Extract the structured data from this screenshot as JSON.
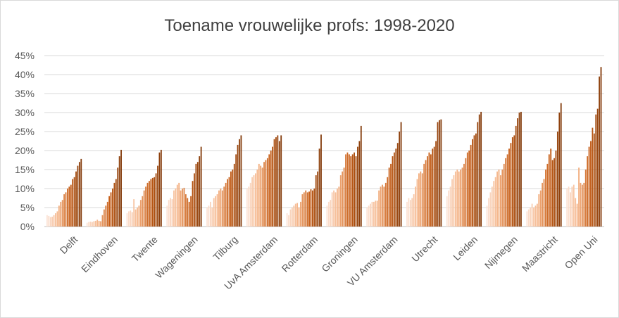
{
  "chart_data": {
    "type": "bar",
    "title": "Toename vrouwelijke profs: 1998-2020",
    "xlabel": "",
    "ylabel": "",
    "ylim": [
      0,
      45
    ],
    "y_ticks": [
      "0%",
      "5%",
      "10%",
      "15%",
      "20%",
      "25%",
      "30%",
      "35%",
      "40%",
      "45%"
    ],
    "y_tick_values": [
      0,
      5,
      10,
      15,
      20,
      25,
      30,
      35,
      40,
      45
    ],
    "grid": true,
    "legend": "none",
    "color_light": "#fbe3d6",
    "color_dark": "#843c0c",
    "categories": [
      "Delft",
      "Eindhoven",
      "Twente",
      "Wageningen",
      "Tilburg",
      "UvA Amsterdam",
      "Rotterdam",
      "Groningen",
      "VU Amsterdam",
      "Utrecht",
      "Leiden",
      "Nijmegen",
      "Maastricht",
      "Open Uni"
    ],
    "series_by_category": [
      {
        "name": "Delft",
        "values": [
          3.0,
          2.8,
          2.5,
          2.6,
          3.0,
          3.5,
          4.0,
          5.5,
          6.5,
          7.0,
          8.5,
          9.0,
          10.0,
          10.5,
          11.0,
          12.5,
          13.0,
          14.5,
          16.0,
          17.0,
          17.8
        ]
      },
      {
        "name": "Eindhoven",
        "values": [
          1.0,
          1.2,
          1.3,
          1.2,
          1.4,
          1.5,
          1.8,
          1.5,
          1.4,
          3.0,
          4.5,
          5.5,
          6.5,
          8.0,
          9.0,
          10.0,
          11.5,
          12.5,
          15.5,
          18.5,
          20.2
        ]
      },
      {
        "name": "Twente",
        "values": [
          3.5,
          4.0,
          4.2,
          3.8,
          7.2,
          4.5,
          5.0,
          5.5,
          7.0,
          8.0,
          9.5,
          10.5,
          11.5,
          12.0,
          12.5,
          12.8,
          13.0,
          14.0,
          16.0,
          19.5,
          20.2
        ]
      },
      {
        "name": "Wageningen",
        "values": [
          5.5,
          7.0,
          7.5,
          7.2,
          9.5,
          10.0,
          11.0,
          11.5,
          9.5,
          10.0,
          10.2,
          8.5,
          7.5,
          6.5,
          8.0,
          12.0,
          14.0,
          16.5,
          17.0,
          18.5,
          21.0
        ]
      },
      {
        "name": "Tilburg",
        "values": [
          5.0,
          5.5,
          6.5,
          5.0,
          7.5,
          8.0,
          8.5,
          9.5,
          10.0,
          9.5,
          10.5,
          11.5,
          12.5,
          13.0,
          14.5,
          15.0,
          16.5,
          19.0,
          21.5,
          23.0,
          24.0
        ]
      },
      {
        "name": "UvA Amsterdam",
        "values": [
          10.0,
          10.5,
          11.5,
          13.0,
          13.5,
          14.0,
          15.0,
          16.5,
          16.0,
          15.5,
          17.0,
          17.5,
          18.0,
          19.0,
          20.0,
          21.0,
          23.0,
          23.5,
          24.0,
          22.5,
          24.0
        ]
      },
      {
        "name": "Rotterdam",
        "values": [
          3.5,
          3.0,
          4.5,
          5.0,
          5.5,
          6.0,
          6.2,
          5.0,
          6.5,
          8.5,
          9.0,
          9.5,
          9.0,
          9.2,
          9.8,
          9.5,
          10.0,
          13.5,
          14.5,
          20.5,
          24.2
        ]
      },
      {
        "name": "Groningen",
        "values": [
          5.5,
          6.5,
          7.0,
          9.0,
          9.5,
          9.0,
          10.0,
          10.5,
          13.5,
          14.5,
          15.5,
          19.0,
          19.5,
          19.0,
          18.5,
          19.0,
          19.5,
          18.5,
          21.0,
          22.5,
          26.5
        ]
      },
      {
        "name": "VU Amsterdam",
        "values": [
          5.0,
          5.5,
          6.0,
          6.5,
          6.5,
          6.8,
          6.8,
          9.5,
          10.5,
          11.0,
          10.5,
          11.5,
          13.0,
          15.5,
          16.5,
          18.5,
          19.5,
          20.5,
          22.0,
          25.0,
          27.5
        ]
      },
      {
        "name": "Utrecht",
        "values": [
          6.5,
          7.5,
          7.0,
          7.5,
          8.5,
          10.5,
          12.5,
          14.0,
          14.5,
          14.0,
          16.5,
          17.5,
          18.5,
          19.5,
          19.0,
          20.5,
          21.0,
          22.5,
          27.5,
          28.0,
          28.2
        ]
      },
      {
        "name": "Leiden",
        "values": [
          8.0,
          9.5,
          10.5,
          12.5,
          13.5,
          14.5,
          15.0,
          14.5,
          15.0,
          15.5,
          16.5,
          18.0,
          19.5,
          20.0,
          21.5,
          23.0,
          24.0,
          24.5,
          27.5,
          29.5,
          30.2
        ]
      },
      {
        "name": "Nijmegen",
        "values": [
          5.5,
          7.5,
          9.0,
          10.5,
          12.0,
          13.0,
          14.5,
          15.0,
          13.5,
          15.0,
          16.5,
          18.0,
          19.0,
          20.5,
          22.0,
          23.5,
          24.0,
          26.5,
          28.5,
          30.0,
          30.2
        ]
      },
      {
        "name": "Maastricht",
        "values": [
          4.0,
          4.5,
          5.0,
          6.0,
          5.0,
          5.5,
          6.0,
          8.5,
          9.5,
          11.5,
          12.5,
          15.0,
          16.5,
          19.0,
          20.5,
          17.5,
          18.0,
          20.0,
          25.0,
          30.0,
          32.5
        ]
      },
      {
        "name": "Open Uni",
        "values": [
          10.0,
          10.5,
          9.0,
          10.5,
          11.0,
          7.5,
          6.0,
          15.5,
          11.5,
          11.0,
          11.5,
          15.0,
          18.5,
          21.0,
          22.5,
          26.0,
          24.5,
          29.5,
          31.0,
          39.5,
          42.0
        ]
      }
    ]
  }
}
